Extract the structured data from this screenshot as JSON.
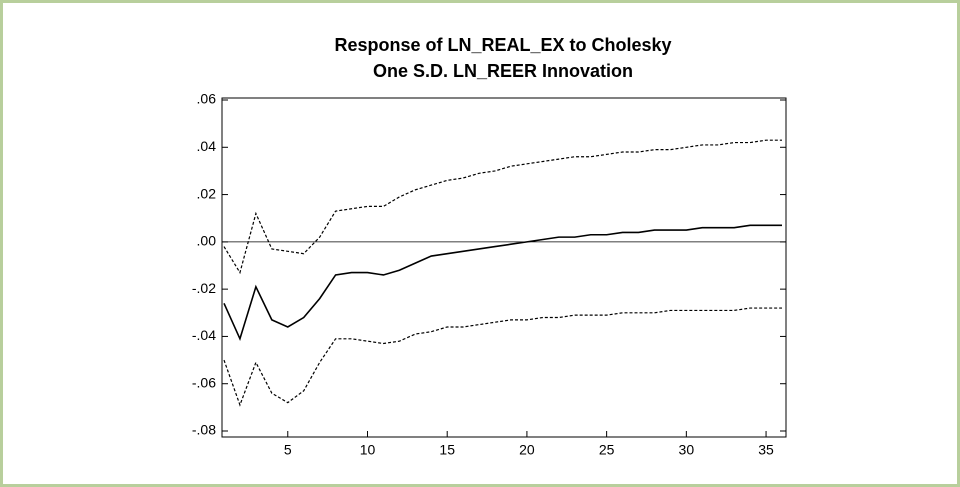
{
  "chart_data": {
    "type": "line",
    "title": [
      "Response of LN_REAL_EX to Cholesky",
      "One S.D. LN_REER Innovation"
    ],
    "x": [
      1,
      2,
      3,
      4,
      5,
      6,
      7,
      8,
      9,
      10,
      11,
      12,
      13,
      14,
      15,
      16,
      17,
      18,
      19,
      20,
      21,
      22,
      23,
      24,
      25,
      26,
      27,
      28,
      29,
      30,
      31,
      32,
      33,
      34,
      35,
      36
    ],
    "series": [
      {
        "color": "#000000",
        "dash": false,
        "values": [
          -0.026,
          -0.041,
          -0.019,
          -0.033,
          -0.036,
          -0.032,
          -0.024,
          -0.014,
          -0.013,
          -0.013,
          -0.014,
          -0.012,
          -0.009,
          -0.006,
          -0.005,
          -0.004,
          -0.003,
          -0.002,
          -0.001,
          0.0,
          0.001,
          0.002,
          0.002,
          0.003,
          0.003,
          0.004,
          0.004,
          0.005,
          0.005,
          0.005,
          0.006,
          0.006,
          0.006,
          0.007,
          0.007,
          0.007
        ]
      },
      {
        "color": "#000000",
        "dash": true,
        "values": [
          -0.002,
          -0.013,
          0.012,
          -0.003,
          -0.004,
          -0.005,
          0.002,
          0.013,
          0.014,
          0.015,
          0.015,
          0.019,
          0.022,
          0.024,
          0.026,
          0.027,
          0.029,
          0.03,
          0.032,
          0.033,
          0.034,
          0.035,
          0.036,
          0.036,
          0.037,
          0.038,
          0.038,
          0.039,
          0.039,
          0.04,
          0.041,
          0.041,
          0.042,
          0.042,
          0.043,
          0.043
        ]
      },
      {
        "color": "#000000",
        "dash": true,
        "values": [
          -0.05,
          -0.069,
          -0.051,
          -0.064,
          -0.068,
          -0.063,
          -0.051,
          -0.041,
          -0.041,
          -0.042,
          -0.043,
          -0.042,
          -0.039,
          -0.038,
          -0.036,
          -0.036,
          -0.035,
          -0.034,
          -0.033,
          -0.033,
          -0.032,
          -0.032,
          -0.031,
          -0.031,
          -0.031,
          -0.03,
          -0.03,
          -0.03,
          -0.029,
          -0.029,
          -0.029,
          -0.029,
          -0.029,
          -0.028,
          -0.028,
          -0.028
        ]
      }
    ],
    "hline": 0,
    "xlim": [
      1,
      36
    ],
    "xticks": [
      5,
      10,
      15,
      20,
      25,
      30,
      35
    ],
    "ylim": [
      -0.08,
      0.06
    ],
    "yticks": [
      {
        "value": -0.08,
        "label": "-.08"
      },
      {
        "value": -0.06,
        "label": "-.06"
      },
      {
        "value": -0.04,
        "label": "-.04"
      },
      {
        "value": -0.02,
        "label": "-.02"
      },
      {
        "value": 0,
        "label": ".00"
      },
      {
        "value": 0.02,
        "label": ".02"
      },
      {
        "value": 0.04,
        "label": ".04"
      },
      {
        "value": 0.06,
        "label": ".06"
      }
    ]
  }
}
